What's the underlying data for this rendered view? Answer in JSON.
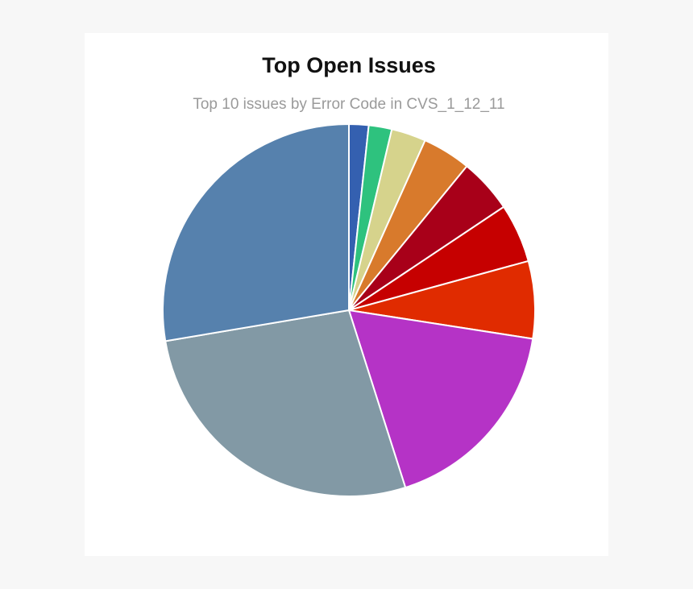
{
  "chart_data": {
    "type": "pie",
    "title": "Top Open Issues",
    "subtitle": "Top 10 issues by Error Code in CVS_1_12_11",
    "values": [
      1.7,
      2,
      3,
      4.2,
      4.7,
      5.1,
      6.7,
      17.6,
      27.2,
      27.6
    ],
    "colors": [
      "#3460b0",
      "#2ec27e",
      "#d6d38c",
      "#d87a2c",
      "#a80019",
      "#c60000",
      "#e02b00",
      "#b533c6",
      "#8299a5",
      "#5681ad"
    ]
  }
}
